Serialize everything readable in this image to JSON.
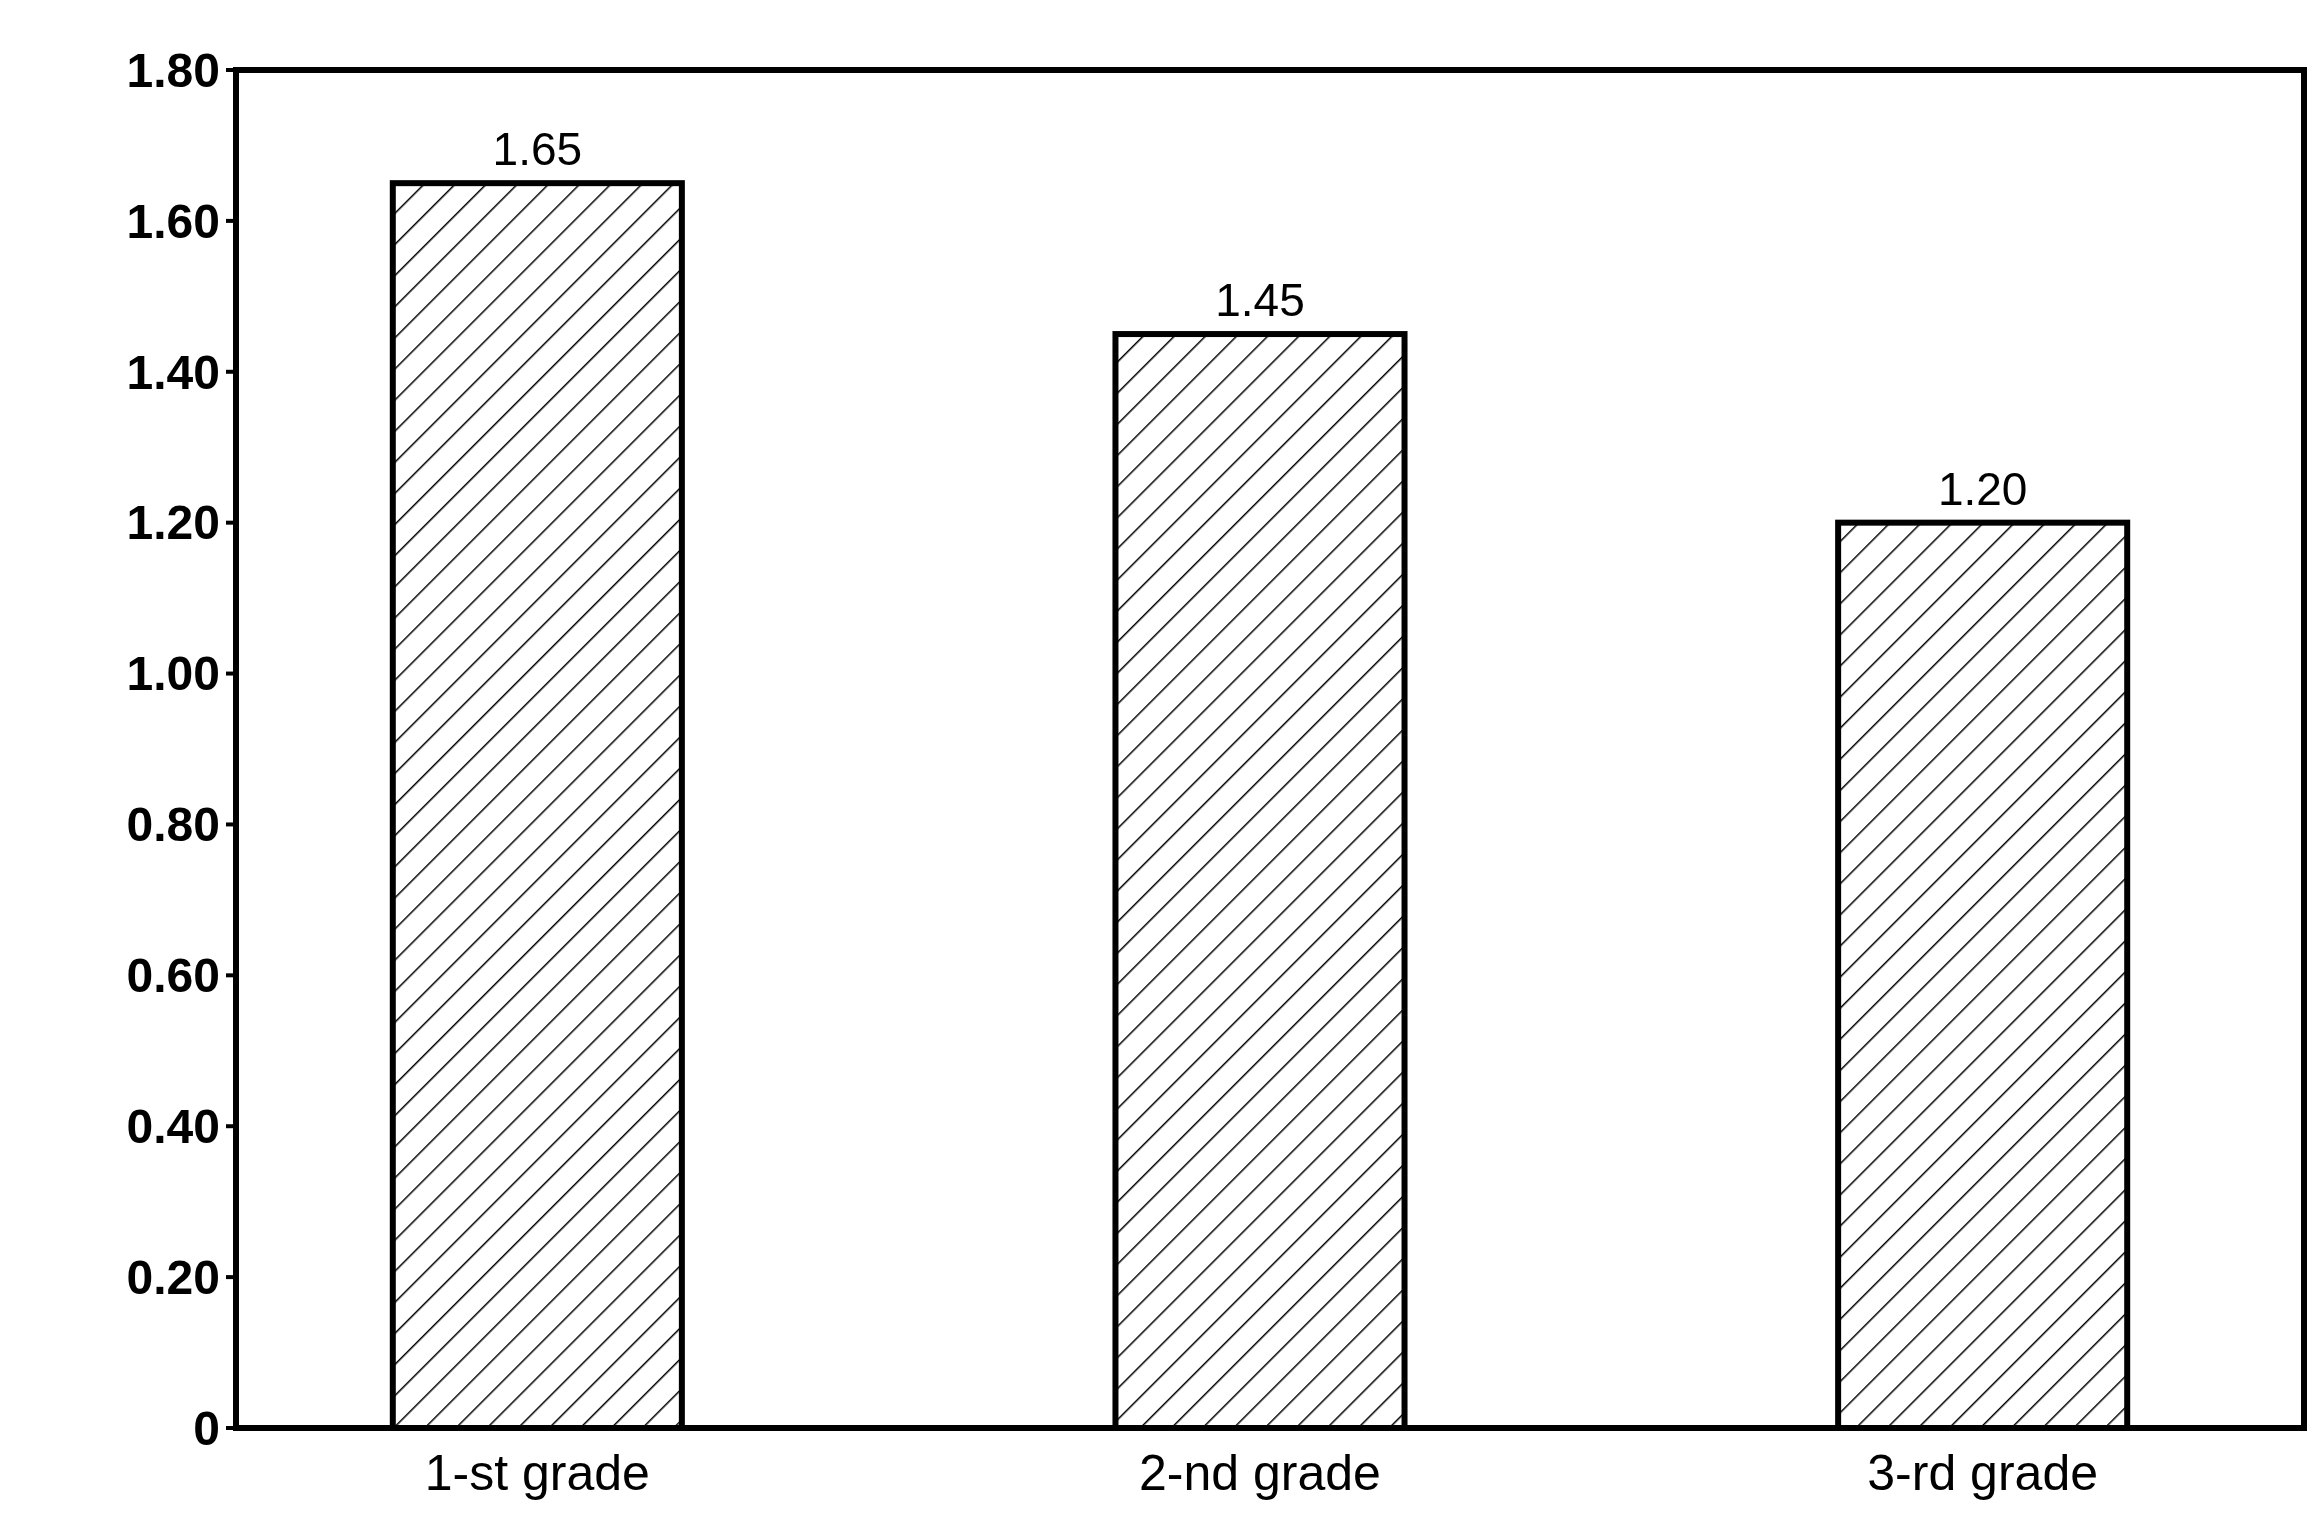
{
  "chart_data": {
    "type": "bar",
    "categories": [
      "1-st grade",
      "2-nd grade",
      "3-rd grade"
    ],
    "values": [
      1.65,
      1.45,
      1.2
    ],
    "value_labels": [
      "1.65",
      "1.45",
      "1.20"
    ],
    "color": "#000000",
    "ylim": [
      0,
      1.8
    ],
    "yticks": [
      0,
      {
        "value": 0.2,
        "label": "0.20"
      },
      {
        "value": 0.4,
        "label": "0.40"
      },
      {
        "value": 0.6,
        "label": "0.60"
      },
      {
        "value": 0.8,
        "label": "0.80"
      },
      {
        "value": 1,
        "label": "1.00"
      },
      {
        "value": 1.2,
        "label": "1.20"
      },
      {
        "value": 1.4,
        "label": "1.40"
      },
      {
        "value": 1.6,
        "label": "1.60"
      },
      {
        "value": 1.8,
        "label": "1.80"
      }
    ],
    "grid": false
  }
}
